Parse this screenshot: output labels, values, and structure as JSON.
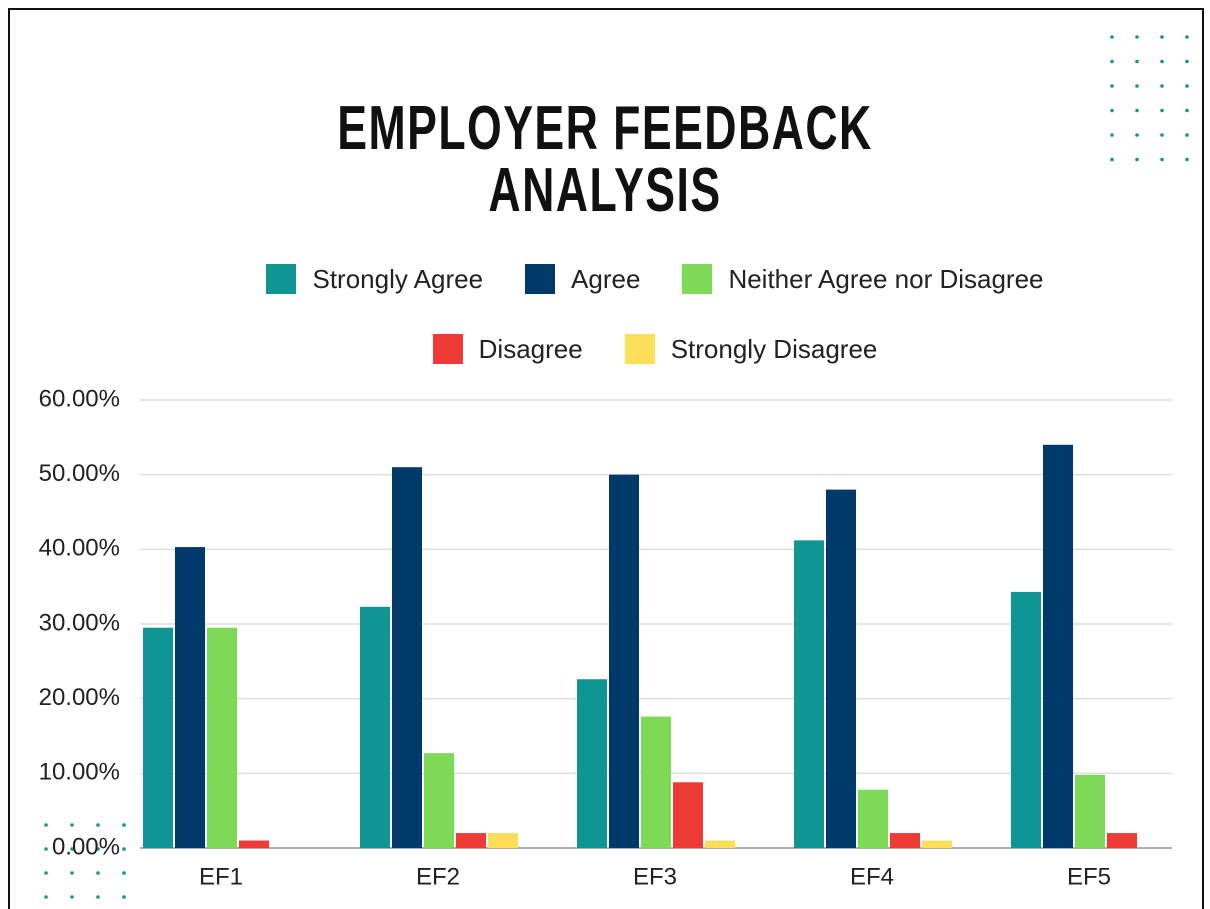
{
  "chart_data": {
    "type": "bar",
    "title": "EMPLOYER FEEDBACK ANALYSIS",
    "categories": [
      "EF1",
      "EF2",
      "EF3",
      "EF4",
      "EF5"
    ],
    "series": [
      {
        "name": "Strongly Agree",
        "color": "#0e9594",
        "values": [
          29.5,
          32.3,
          22.6,
          41.2,
          34.3
        ]
      },
      {
        "name": "Agree",
        "color": "#003a6b",
        "values": [
          40.3,
          51,
          50,
          48,
          54
        ]
      },
      {
        "name": "Neither Agree nor Disagree",
        "color": "#7ed957",
        "values": [
          29.5,
          12.7,
          17.6,
          7.8,
          9.8
        ]
      },
      {
        "name": "Disagree",
        "color": "#ef3b36",
        "values": [
          1,
          2,
          8.8,
          2,
          2
        ]
      },
      {
        "name": "Strongly Disagree",
        "color": "#ffde59",
        "values": [
          0,
          2,
          1,
          1,
          0
        ]
      }
    ],
    "ylim": [
      0,
      60
    ],
    "yticks": [
      {
        "value": 0,
        "label": "0.00%"
      },
      {
        "value": 10,
        "label": "10.00%"
      },
      {
        "value": 20,
        "label": "20.00%"
      },
      {
        "value": 30,
        "label": "30.00%"
      },
      {
        "value": 40,
        "label": "40.00%"
      },
      {
        "value": 50,
        "label": "50.00%"
      },
      {
        "value": 60,
        "label": "60.00%"
      }
    ],
    "grid": true
  }
}
